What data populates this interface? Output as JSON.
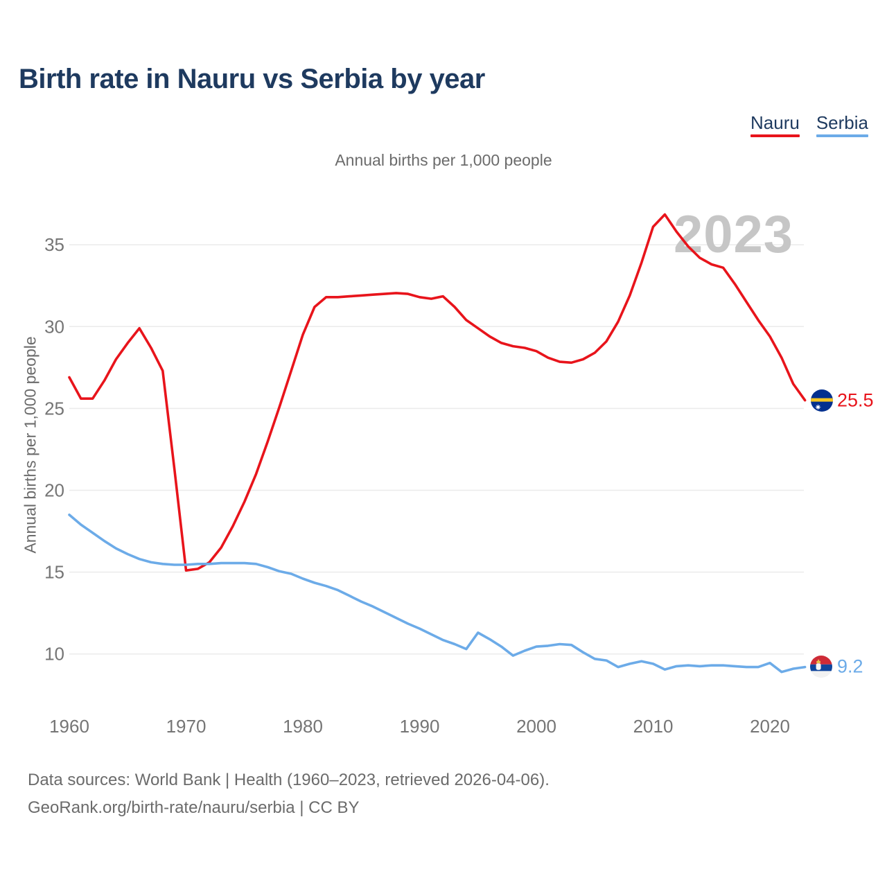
{
  "header": {
    "title": "Birth rate in Nauru vs Serbia by year"
  },
  "legend": [
    {
      "label": "Nauru",
      "color": "#e8141b"
    },
    {
      "label": "Serbia",
      "color": "#6cabe8"
    }
  ],
  "subtitle": "Annual births per 1,000 people",
  "y_axis_title": "Annual births per 1,000 people",
  "footer": {
    "line1": "Data sources: World Bank | Health (1960–2023, retrieved 2026-04-06).",
    "line2": "GeoRank.org/birth-rate/nauru/serbia | CC BY"
  },
  "chart_data": {
    "type": "line",
    "title": "Birth rate in Nauru vs Serbia by year",
    "ylabel": "Annual births per 1,000 people",
    "watermark": "2023",
    "x_start": 1960,
    "x_end": 2023,
    "x_step": 1,
    "xticks": [
      1960,
      1970,
      1980,
      1990,
      2000,
      2010,
      2020
    ],
    "yticks": [
      10,
      15,
      20,
      25,
      30,
      35
    ],
    "ylim": [
      8.5,
      38
    ],
    "grid": "horizontal-only",
    "legend_position": "top-right",
    "series": [
      {
        "name": "Nauru",
        "color": "#e8141b",
        "end_label": "25.5",
        "values": [
          26.9,
          25.6,
          25.6,
          26.7,
          28.0,
          29.0,
          29.9,
          28.7,
          27.3,
          21.3,
          15.1,
          15.2,
          15.6,
          16.5,
          17.8,
          19.3,
          21.0,
          23.0,
          25.1,
          27.3,
          29.5,
          31.2,
          31.8,
          31.8,
          31.85,
          31.9,
          31.95,
          32.0,
          32.05,
          32.0,
          31.8,
          31.7,
          31.85,
          31.2,
          30.4,
          29.9,
          29.4,
          29.0,
          28.8,
          28.7,
          28.5,
          28.1,
          27.85,
          27.8,
          28.0,
          28.4,
          29.1,
          30.3,
          31.9,
          33.9,
          36.1,
          36.85,
          35.8,
          34.9,
          34.2,
          33.8,
          33.6,
          32.6,
          31.5,
          30.4,
          29.4,
          28.1,
          26.5,
          25.5
        ]
      },
      {
        "name": "Serbia",
        "color": "#6cabe8",
        "end_label": "9.2",
        "values": [
          18.5,
          17.9,
          17.4,
          16.9,
          16.45,
          16.1,
          15.8,
          15.6,
          15.5,
          15.45,
          15.45,
          15.5,
          15.5,
          15.55,
          15.55,
          15.55,
          15.5,
          15.3,
          15.05,
          14.9,
          14.6,
          14.35,
          14.15,
          13.9,
          13.55,
          13.2,
          12.9,
          12.55,
          12.2,
          11.85,
          11.55,
          11.2,
          10.85,
          10.6,
          10.3,
          11.3,
          10.9,
          10.45,
          9.9,
          10.2,
          10.45,
          10.5,
          10.6,
          10.55,
          10.1,
          9.7,
          9.6,
          9.2,
          9.4,
          9.55,
          9.4,
          9.05,
          9.25,
          9.3,
          9.25,
          9.3,
          9.3,
          9.25,
          9.2,
          9.2,
          9.45,
          8.9,
          9.1,
          9.2
        ]
      }
    ]
  }
}
